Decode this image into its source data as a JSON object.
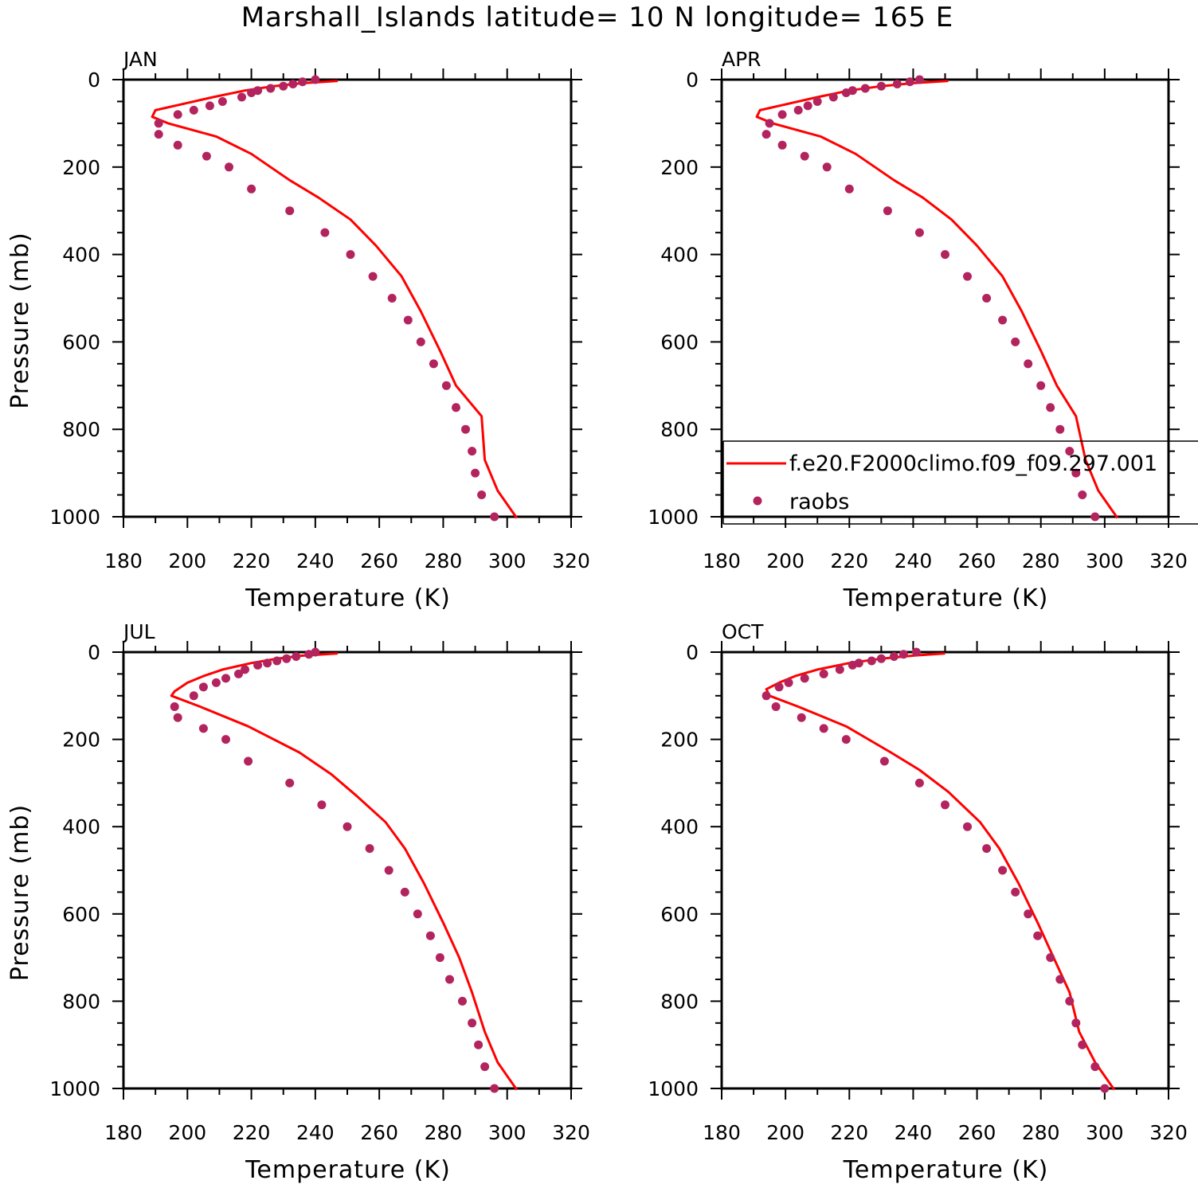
{
  "title": "Marshall_Islands  latitude= 10 N longitude= 165 E",
  "colors": {
    "model": "#ff0000",
    "obs": "#b3245f",
    "axis": "#000000"
  },
  "legend": {
    "model_label": "f.e20.F2000climo.f09_f09.297.001",
    "obs_label": "raobs",
    "panel": "APR",
    "placement": "lower-right"
  },
  "chart_data": [
    {
      "type": "line",
      "panel": "JAN",
      "xlabel": "Temperature (K)",
      "ylabel": "Pressure (mb)",
      "xlim": [
        180,
        320
      ],
      "ylim": [
        1000,
        0
      ],
      "y_reversed": true,
      "xticks": [
        180,
        200,
        220,
        240,
        260,
        280,
        300,
        320
      ],
      "yticks": [
        0,
        200,
        400,
        600,
        800,
        1000
      ],
      "model": {
        "p": [
          3,
          8,
          15,
          25,
          40,
          55,
          70,
          85,
          100,
          130,
          170,
          230,
          270,
          320,
          380,
          450,
          530,
          620,
          700,
          770,
          870,
          940,
          1003
        ],
        "t": [
          247,
          236,
          227,
          218,
          208,
          199,
          190,
          189,
          194,
          209,
          220,
          232,
          241,
          251,
          259,
          267,
          273,
          279,
          284,
          292,
          293,
          297,
          303
        ]
      },
      "obs": {
        "p": [
          0,
          5,
          10,
          15,
          20,
          25,
          30,
          40,
          50,
          60,
          70,
          80,
          100,
          125,
          150,
          175,
          200,
          250,
          300,
          350,
          400,
          450,
          500,
          550,
          600,
          650,
          700,
          750,
          800,
          850,
          900,
          950,
          1000
        ],
        "t": [
          240,
          236,
          233,
          230,
          226,
          222,
          220,
          217,
          211,
          207,
          202,
          197,
          191,
          191,
          197,
          206,
          213,
          220,
          232,
          243,
          251,
          258,
          264,
          269,
          273,
          277,
          281,
          284,
          287,
          289,
          290,
          292,
          296
        ]
      }
    },
    {
      "type": "line",
      "panel": "APR",
      "xlabel": "Temperature (K)",
      "ylabel": "",
      "xlim": [
        180,
        320
      ],
      "ylim": [
        1000,
        0
      ],
      "y_reversed": true,
      "xticks": [
        180,
        200,
        220,
        240,
        260,
        280,
        300,
        320
      ],
      "yticks": [
        0,
        200,
        400,
        600,
        800,
        1000
      ],
      "model": {
        "p": [
          3,
          8,
          15,
          25,
          40,
          55,
          70,
          85,
          100,
          130,
          170,
          230,
          270,
          320,
          380,
          450,
          530,
          620,
          700,
          770,
          870,
          940,
          1003
        ],
        "t": [
          251,
          240,
          230,
          220,
          210,
          201,
          192,
          191,
          196,
          211,
          222,
          234,
          243,
          252,
          260,
          268,
          274,
          280,
          285,
          291,
          294,
          298,
          304
        ]
      },
      "obs": {
        "p": [
          0,
          5,
          10,
          15,
          20,
          25,
          30,
          40,
          50,
          60,
          70,
          80,
          100,
          125,
          150,
          175,
          200,
          250,
          300,
          350,
          400,
          450,
          500,
          550,
          600,
          650,
          700,
          750,
          800,
          850,
          900,
          950,
          1000
        ],
        "t": [
          242,
          239,
          235,
          230,
          225,
          221,
          219,
          215,
          210,
          207,
          204,
          199,
          195,
          194,
          199,
          206,
          213,
          220,
          232,
          242,
          250,
          257,
          263,
          268,
          272,
          276,
          280,
          283,
          286,
          289,
          291,
          293,
          297
        ]
      }
    },
    {
      "type": "line",
      "panel": "JUL",
      "xlabel": "Temperature (K)",
      "ylabel": "Pressure (mb)",
      "xlim": [
        180,
        320
      ],
      "ylim": [
        1000,
        0
      ],
      "y_reversed": true,
      "xticks": [
        180,
        200,
        220,
        240,
        260,
        280,
        300,
        320
      ],
      "yticks": [
        0,
        200,
        400,
        600,
        800,
        1000
      ],
      "model": {
        "p": [
          3,
          8,
          15,
          25,
          40,
          55,
          70,
          90,
          100,
          125,
          170,
          230,
          280,
          330,
          390,
          450,
          530,
          620,
          700,
          780,
          870,
          940,
          1003
        ],
        "t": [
          247,
          236,
          228,
          220,
          211,
          205,
          200,
          196,
          195,
          204,
          219,
          235,
          245,
          253,
          262,
          268,
          274,
          280,
          285,
          289,
          293,
          297,
          303
        ]
      },
      "obs": {
        "p": [
          0,
          5,
          10,
          15,
          20,
          25,
          30,
          40,
          50,
          60,
          70,
          80,
          100,
          125,
          150,
          175,
          200,
          250,
          300,
          350,
          400,
          450,
          500,
          550,
          600,
          650,
          700,
          750,
          800,
          850,
          900,
          950,
          1000
        ],
        "t": [
          240,
          238,
          234,
          231,
          228,
          225,
          222,
          218,
          216,
          212,
          209,
          205,
          202,
          196,
          197,
          205,
          212,
          219,
          232,
          242,
          250,
          257,
          263,
          268,
          272,
          276,
          279,
          282,
          286,
          289,
          291,
          293,
          296
        ]
      }
    },
    {
      "type": "line",
      "panel": "OCT",
      "xlabel": "Temperature (K)",
      "ylabel": "",
      "xlim": [
        180,
        320
      ],
      "ylim": [
        1000,
        0
      ],
      "y_reversed": true,
      "xticks": [
        180,
        200,
        220,
        240,
        260,
        280,
        300,
        320
      ],
      "yticks": [
        0,
        200,
        400,
        600,
        800,
        1000
      ],
      "model": {
        "p": [
          3,
          8,
          15,
          25,
          40,
          55,
          70,
          85,
          100,
          125,
          170,
          230,
          270,
          320,
          390,
          450,
          530,
          620,
          700,
          780,
          870,
          940,
          1003
        ],
        "t": [
          250,
          240,
          230,
          220,
          210,
          203,
          198,
          194,
          195,
          204,
          219,
          233,
          242,
          251,
          261,
          267,
          273,
          279,
          284,
          289,
          292,
          297,
          303
        ]
      },
      "obs": {
        "p": [
          0,
          5,
          10,
          15,
          20,
          25,
          30,
          40,
          50,
          60,
          70,
          80,
          100,
          125,
          150,
          175,
          200,
          250,
          300,
          350,
          400,
          450,
          500,
          550,
          600,
          650,
          700,
          750,
          800,
          850,
          900,
          950,
          1000
        ],
        "t": [
          241,
          237,
          234,
          230,
          227,
          223,
          221,
          217,
          212,
          206,
          201,
          198,
          194,
          197,
          205,
          212,
          219,
          231,
          242,
          250,
          257,
          263,
          268,
          272,
          276,
          279,
          283,
          286,
          289,
          291,
          293,
          297,
          300
        ]
      }
    }
  ]
}
